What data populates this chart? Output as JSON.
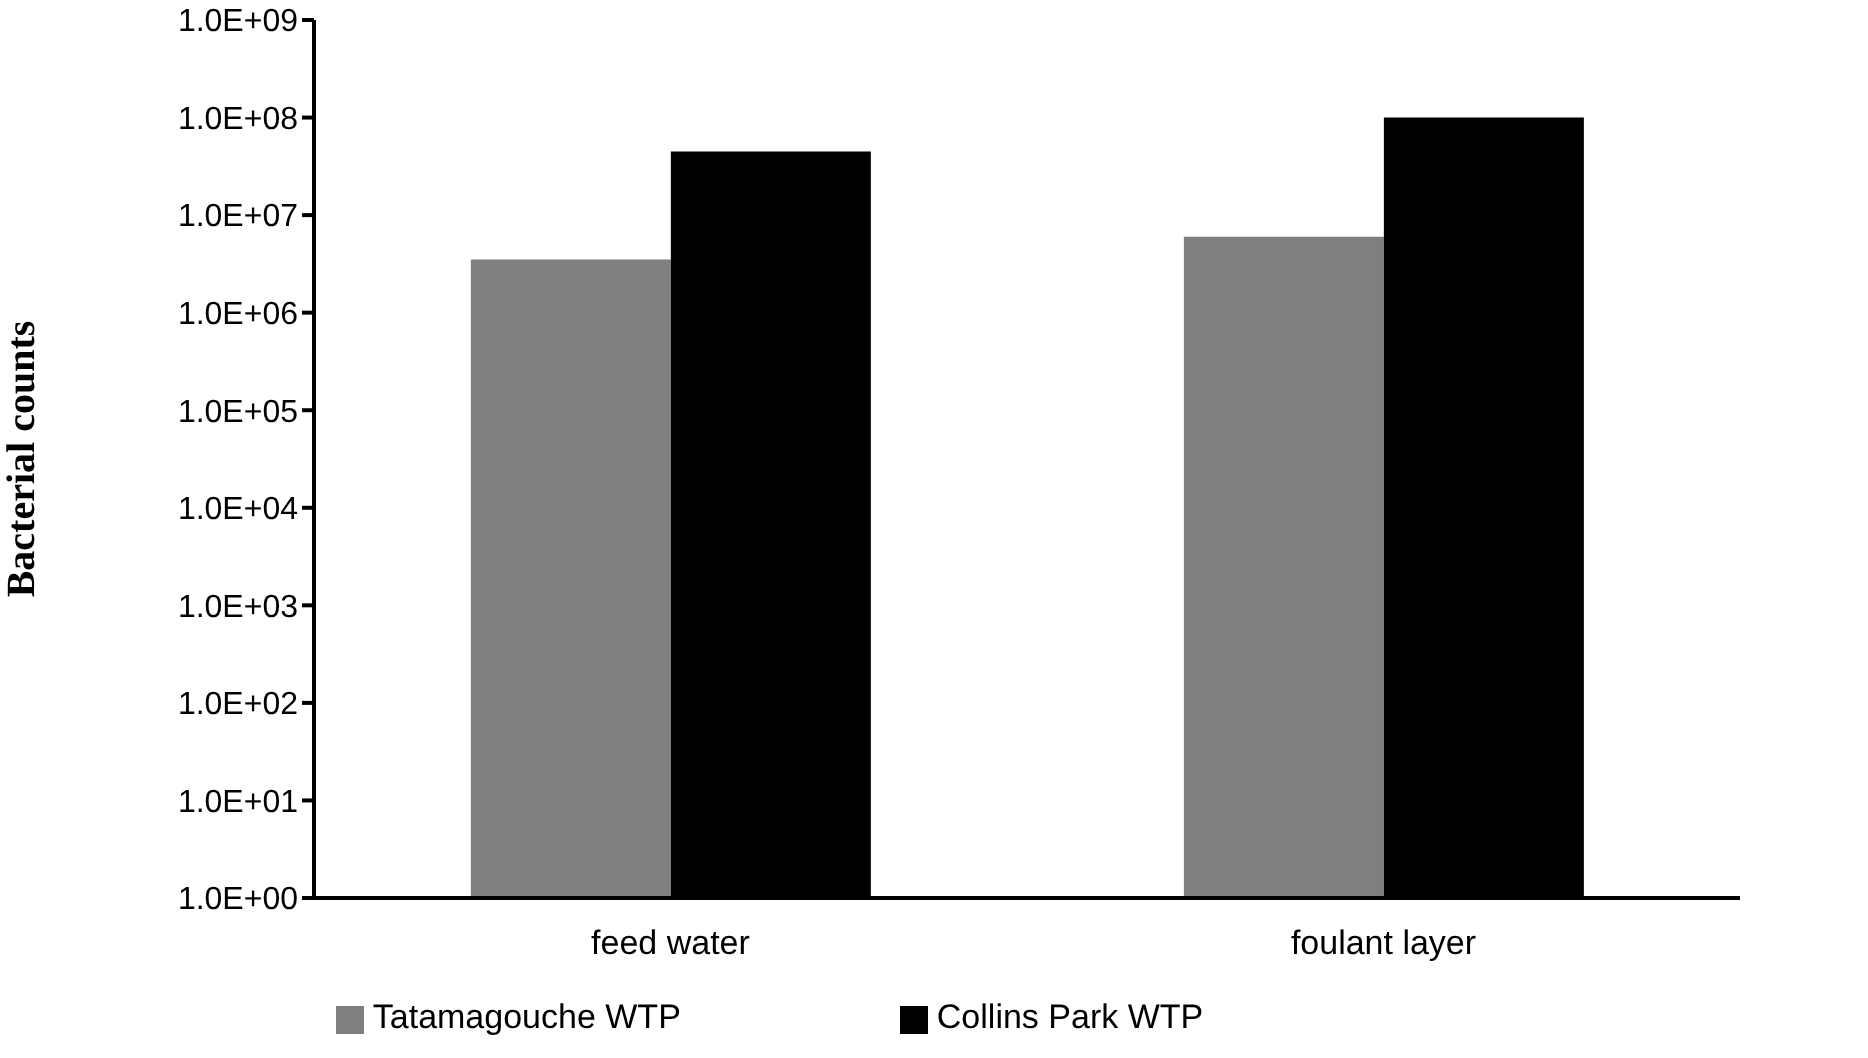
{
  "chart_data": {
    "type": "bar",
    "ylabel": "Bacterial counts",
    "categories": [
      "feed water",
      "foulant layer"
    ],
    "series": [
      {
        "name": "Tatamagouche WTP",
        "color": "#7f7f7f",
        "values": [
          3500000,
          6000000
        ]
      },
      {
        "name": "Collins Park WTP",
        "color": "#000000",
        "values": [
          45000000,
          100000000
        ]
      }
    ],
    "log": true,
    "ylim": [
      1,
      1000000000
    ],
    "yticks": [
      {
        "value": 1,
        "label": "1.0E+00"
      },
      {
        "value": 10,
        "label": "1.0E+01"
      },
      {
        "value": 100,
        "label": "1.0E+02"
      },
      {
        "value": 1000,
        "label": "1.0E+03"
      },
      {
        "value": 10000,
        "label": "1.0E+04"
      },
      {
        "value": 100000,
        "label": "1.0E+05"
      },
      {
        "value": 1000000,
        "label": "1.0E+06"
      },
      {
        "value": 10000000,
        "label": "1.0E+07"
      },
      {
        "value": 100000000,
        "label": "1.0E+08"
      },
      {
        "value": 1000000000,
        "label": "1.0E+09"
      }
    ],
    "grid": false,
    "legend": "bottom"
  }
}
